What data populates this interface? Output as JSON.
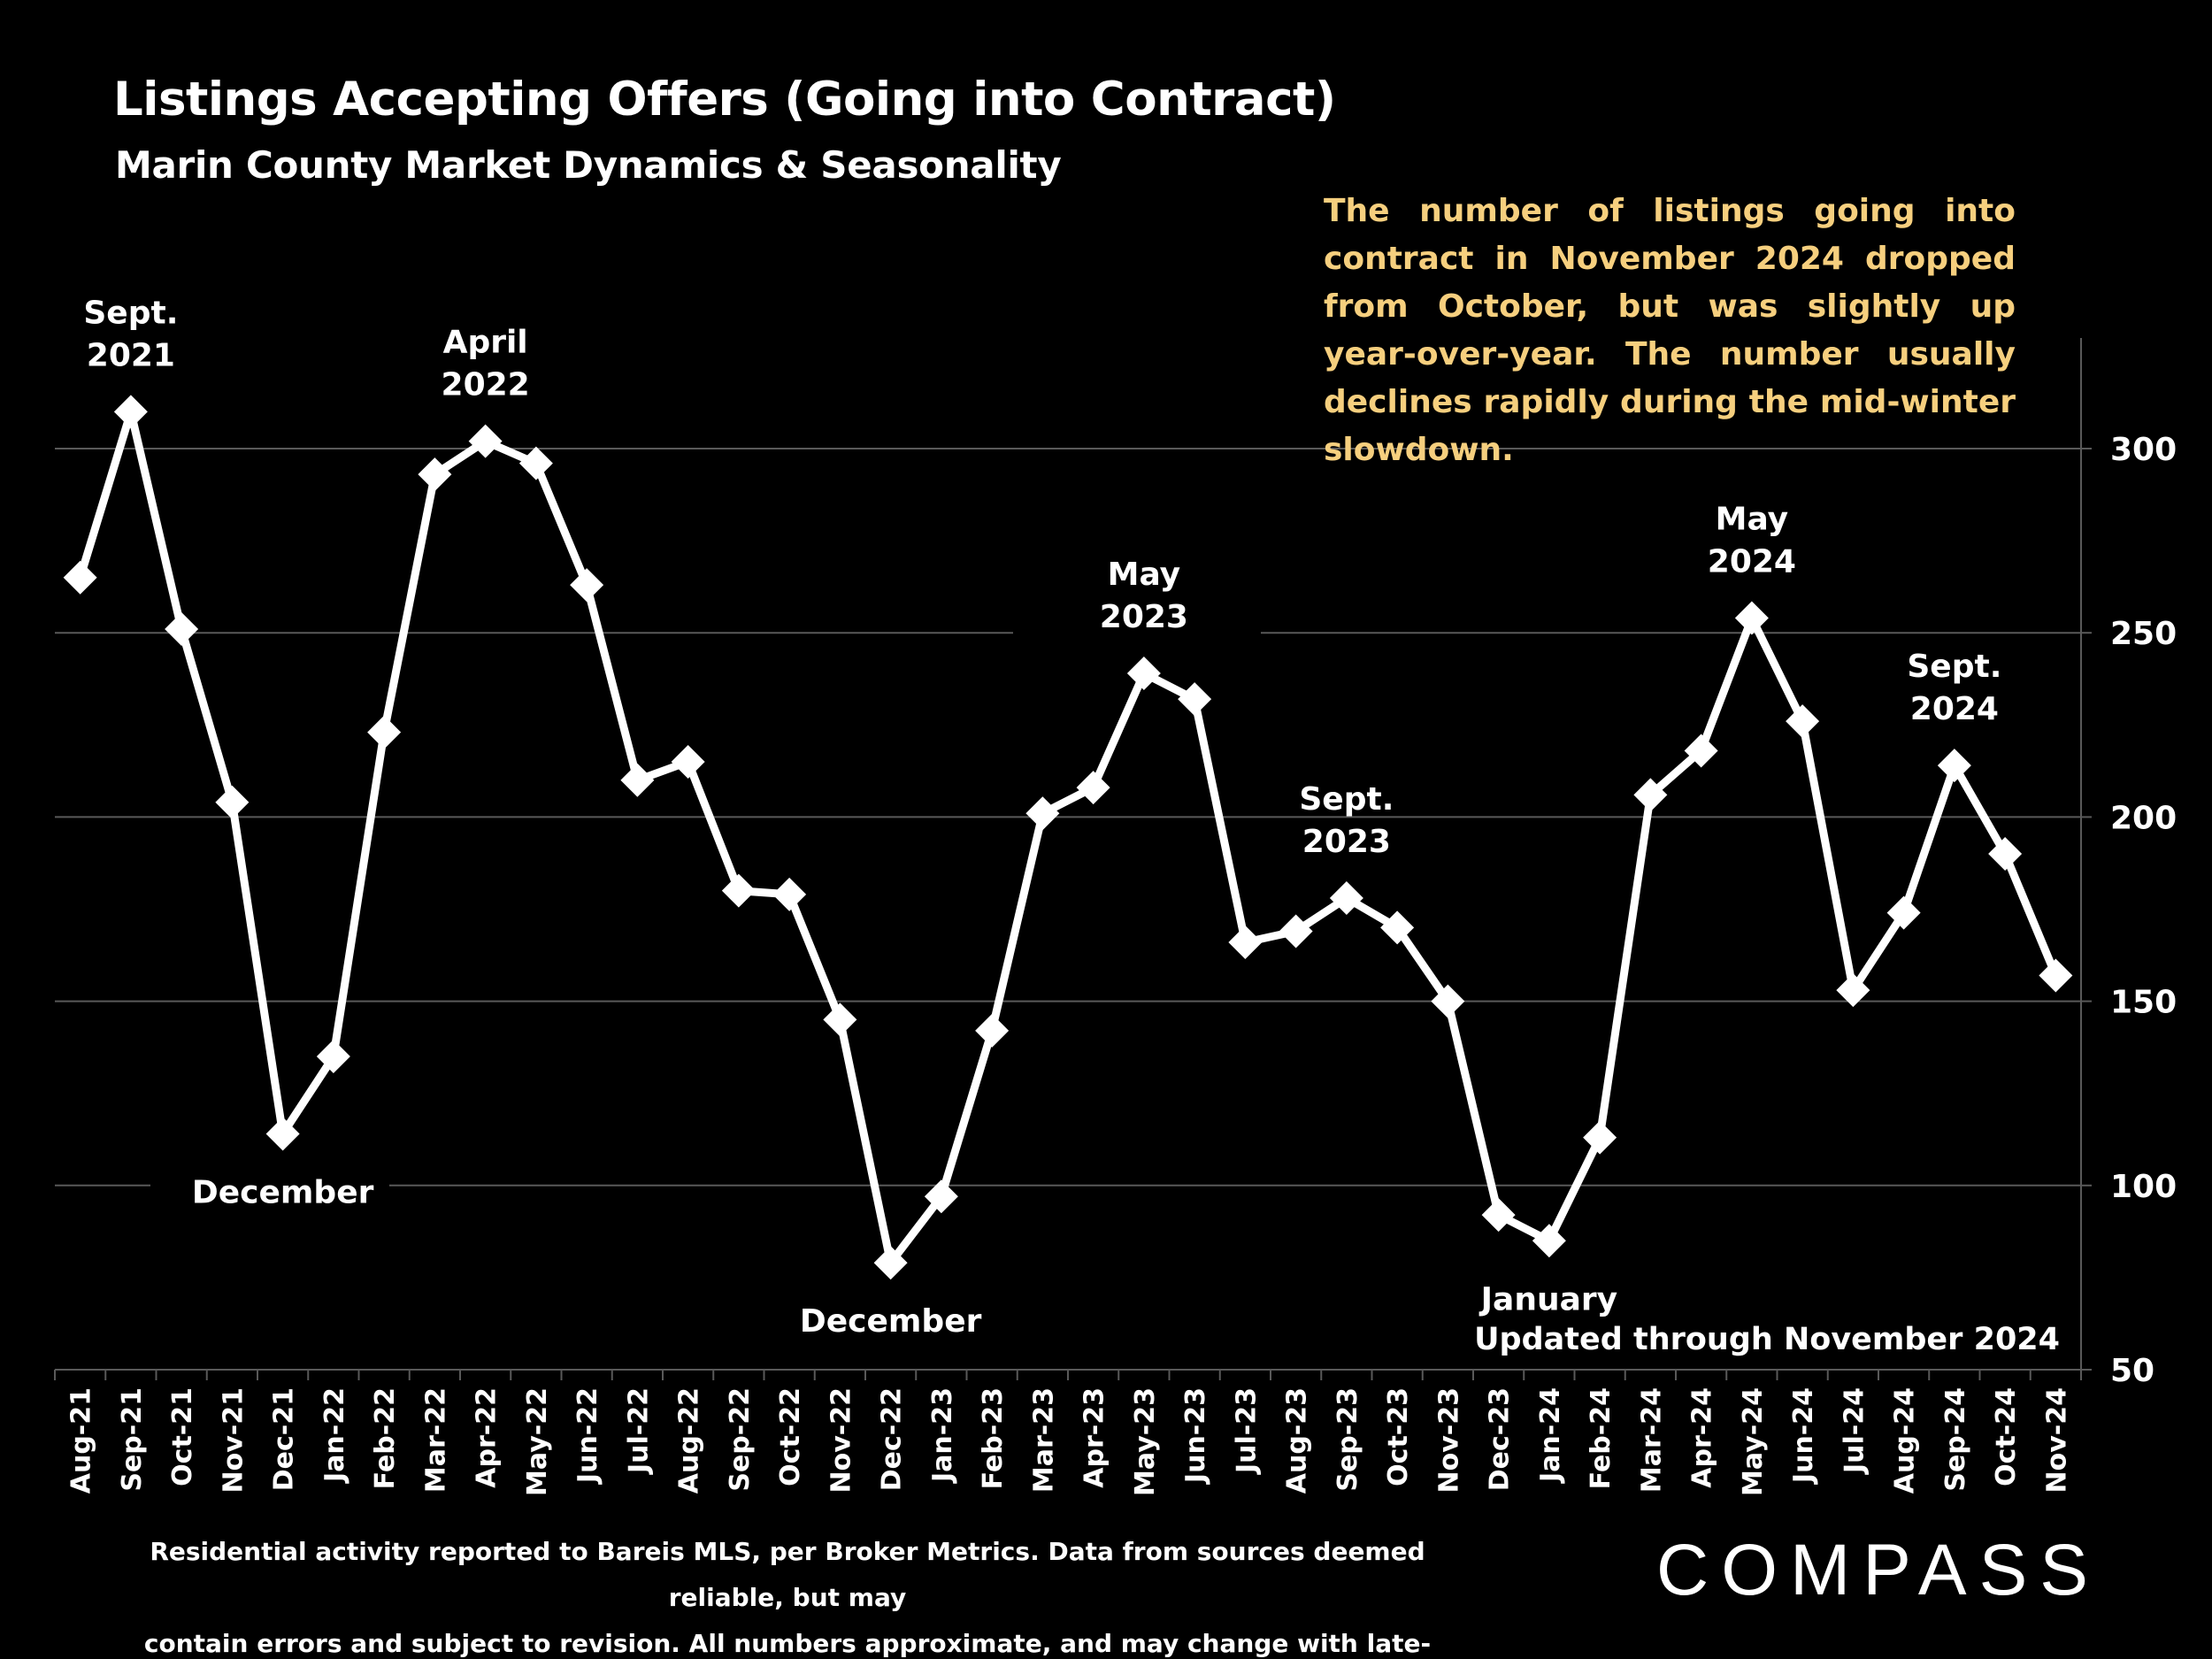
{
  "header": {
    "title": "Listings Accepting Offers (Going into Contract)",
    "subtitle": "Marin County Market Dynamics & Seasonality"
  },
  "note": "The number of listings going into contract in November 2024 dropped from October, but was slightly up year-over-year.  The number usually declines rapidly during the mid-winter slowdown.",
  "updated": "Updated through November 2024",
  "footer": {
    "line1": "Residential activity reported to Bareis MLS, per Broker Metrics. Data from sources deemed reliable, but may",
    "line2": "contain errors and subject to revision. All numbers approximate, and may change with late-reported activity."
  },
  "logo": {
    "text": "COMPASS",
    "icon": "compass-logo-icon"
  },
  "colors": {
    "background": "#000000",
    "line": "#ffffff",
    "note": "#f6cf7e",
    "grid": "#595959"
  },
  "chart_data": {
    "type": "line",
    "title": "",
    "xlabel": "",
    "ylabel": "",
    "ylim": [
      50,
      300
    ],
    "yticks": [
      50,
      100,
      150,
      200,
      250,
      300
    ],
    "grid": true,
    "y_axis_side": "right",
    "marker": "diamond",
    "categories": [
      "Aug-21",
      "Sep-21",
      "Oct-21",
      "Nov-21",
      "Dec-21",
      "Jan-22",
      "Feb-22",
      "Mar-22",
      "Apr-22",
      "May-22",
      "Jun-22",
      "Jul-22",
      "Aug-22",
      "Sep-22",
      "Oct-22",
      "Nov-22",
      "Dec-22",
      "Jan-23",
      "Feb-23",
      "Mar-23",
      "Apr-23",
      "May-23",
      "Jun-23",
      "Jul-23",
      "Aug-23",
      "Sep-23",
      "Oct-23",
      "Nov-23",
      "Dec-23",
      "Jan-24",
      "Feb-24",
      "Mar-24",
      "Apr-24",
      "May-24",
      "Jun-24",
      "Jul-24",
      "Aug-24",
      "Sep-24",
      "Oct-24",
      "Nov-24"
    ],
    "series": [
      {
        "values": [
          265,
          310,
          251,
          204,
          114,
          135,
          223,
          293,
          302,
          296,
          263,
          210,
          215,
          180,
          179,
          145,
          79,
          97,
          142,
          201,
          208,
          239,
          232,
          166,
          169,
          178,
          170,
          150,
          92,
          85,
          113,
          206,
          218,
          254,
          226,
          153,
          174,
          214,
          190,
          157
        ]
      }
    ],
    "annotations": [
      {
        "index": 1,
        "lines": [
          "Sept.",
          "2021"
        ],
        "position": "above"
      },
      {
        "index": 8,
        "lines": [
          "April",
          "2022"
        ],
        "position": "above"
      },
      {
        "index": 4,
        "lines": [
          "December"
        ],
        "position": "below"
      },
      {
        "index": 21,
        "lines": [
          "May",
          "2023"
        ],
        "position": "above"
      },
      {
        "index": 16,
        "lines": [
          "December"
        ],
        "position": "below"
      },
      {
        "index": 25,
        "lines": [
          "Sept.",
          "2023"
        ],
        "position": "above"
      },
      {
        "index": 29,
        "lines": [
          "January"
        ],
        "position": "below"
      },
      {
        "index": 33,
        "lines": [
          "May",
          "2024"
        ],
        "position": "above"
      },
      {
        "index": 37,
        "lines": [
          "Sept.",
          "2024"
        ],
        "position": "above"
      }
    ]
  }
}
